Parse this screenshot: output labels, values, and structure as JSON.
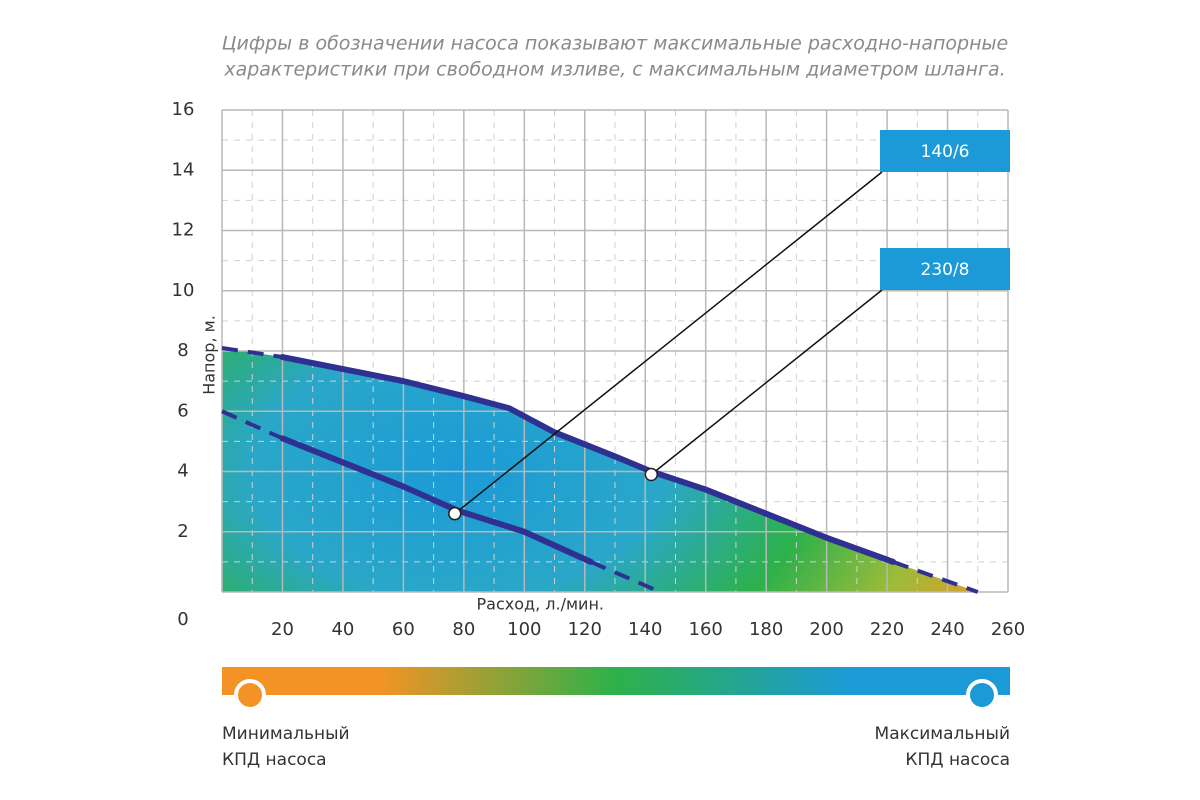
{
  "chart_data": {
    "type": "line",
    "title": [
      "Цифры в обозначении насоса показывают максимальные расходно-напорные",
      "характеристики при свободном изливе, с максимальным диаметром шланга."
    ],
    "x_label": "Расход, л./мин.",
    "y_label": "Напор, м.",
    "xlim": [
      0,
      260
    ],
    "ylim": [
      0,
      16
    ],
    "xticks": [
      20,
      40,
      60,
      80,
      100,
      120,
      140,
      160,
      180,
      200,
      220,
      240,
      260
    ],
    "yticks": [
      0,
      2,
      4,
      6,
      8,
      10,
      12,
      14,
      16
    ],
    "grid": true,
    "series": [
      {
        "name": "140/6",
        "color": "#2e3192",
        "x": [
          0,
          20,
          40,
          60,
          78,
          100,
          122,
          145
        ],
        "values": [
          6.0,
          5.1,
          4.3,
          3.5,
          2.7,
          2.0,
          1.0,
          0
        ]
      },
      {
        "name": "230/8",
        "color": "#2e3192",
        "x": [
          0,
          20,
          40,
          60,
          80,
          95,
          110,
          130,
          142,
          160,
          180,
          200,
          222,
          250
        ],
        "values": [
          8.1,
          7.8,
          7.4,
          7.0,
          6.5,
          6.1,
          5.3,
          4.5,
          4.0,
          3.4,
          2.6,
          1.8,
          1.0,
          0
        ]
      }
    ],
    "annotations": [
      {
        "text": "140/6",
        "x": 77,
        "y": 2.6
      },
      {
        "text": "230/8",
        "x": 142,
        "y": 3.9
      }
    ],
    "legend_color": "#1b9ad7",
    "efficiency_scale": {
      "min_label": [
        "Минимальный",
        "КПД насоса"
      ],
      "max_label": [
        "Максимальный",
        "КПД насоса"
      ],
      "min_color": "#f39325",
      "max_color": "#1b9ad7"
    }
  }
}
